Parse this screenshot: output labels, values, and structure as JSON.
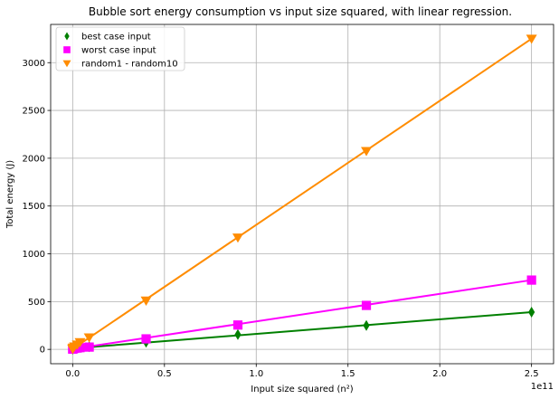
{
  "chart_data": {
    "type": "scatter",
    "title": "Bubble sort energy consumption vs input size squared, with linear regression.",
    "xlabel": "Input size squared (n²)",
    "ylabel": "Total energy (J)",
    "x_offset_label": "1e11",
    "xlim": [
      -0.12,
      2.62
    ],
    "ylim": [
      -150,
      3400
    ],
    "x_ticks": [
      0.0,
      0.5,
      1.0,
      1.5,
      2.0,
      2.5
    ],
    "x_tick_labels": [
      "0.0",
      "0.5",
      "1.0",
      "1.5",
      "2.0",
      "2.5"
    ],
    "y_ticks": [
      0,
      500,
      1000,
      1500,
      2000,
      2500,
      3000
    ],
    "y_tick_labels": [
      "0",
      "500",
      "1000",
      "1500",
      "2000",
      "2500",
      "3000"
    ],
    "grid": true,
    "legend_position": "top-left",
    "series": [
      {
        "name": "best case input",
        "marker": "diamond",
        "color": "#008000",
        "x": [
          0.0001,
          0.0004,
          0.0025,
          0.01,
          0.025,
          0.04,
          0.09,
          0.4,
          0.9,
          1.6,
          2.5
        ],
        "y": [
          3,
          5,
          8,
          12,
          16,
          22,
          28,
          75,
          155,
          250,
          390
        ],
        "fit": [
          [
            0,
            10
          ],
          [
            2.5,
            390
          ]
        ]
      },
      {
        "name": "worst case input",
        "marker": "square",
        "color": "#ff00ff",
        "x": [
          0.0001,
          0.0004,
          0.0025,
          0.01,
          0.025,
          0.04,
          0.09,
          0.4,
          0.9,
          1.6,
          2.5
        ],
        "y": [
          3,
          5,
          8,
          10,
          14,
          18,
          24,
          110,
          255,
          460,
          725
        ],
        "fit": [
          [
            0,
            5
          ],
          [
            2.5,
            725
          ]
        ]
      },
      {
        "name": "random1 - random10",
        "marker": "triangle-down",
        "color": "#ff8c00",
        "x": [
          0.0001,
          0.0004,
          0.0025,
          0.01,
          0.025,
          0.04,
          0.09,
          0.4,
          0.9,
          1.6,
          2.5
        ],
        "y": [
          5,
          8,
          18,
          30,
          50,
          75,
          125,
          510,
          1170,
          2075,
          3250
        ],
        "fit": [
          [
            0,
            5
          ],
          [
            2.5,
            3250
          ]
        ]
      }
    ]
  }
}
